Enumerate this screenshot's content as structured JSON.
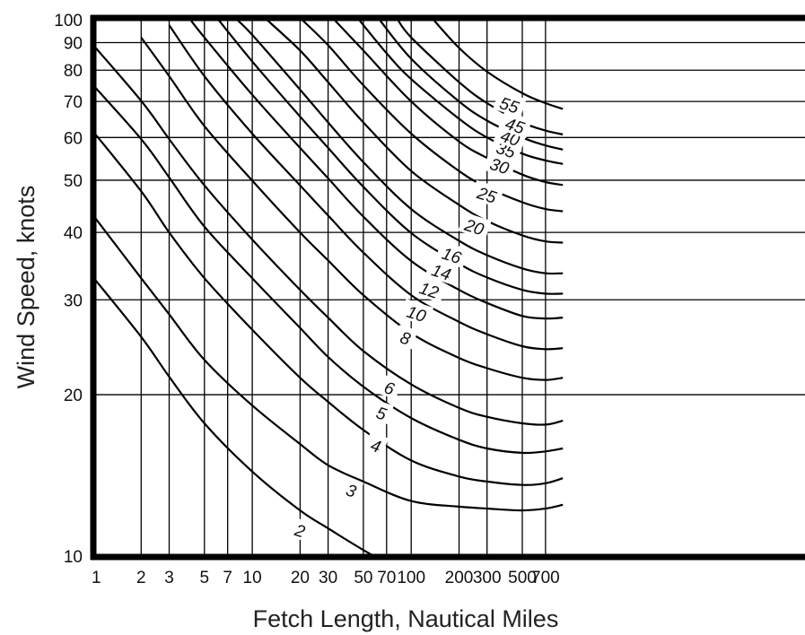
{
  "chart_data": {
    "type": "line",
    "title": "",
    "xlabel": "Fetch Length, Nautical Miles",
    "ylabel": "Wind Speed, knots",
    "xscale": "log",
    "yscale": "log",
    "xlim": [
      1,
      900
    ],
    "ylim": [
      10,
      100
    ],
    "grid": true,
    "legend": "none (contour labels on curves)",
    "x_ticks": [
      {
        "value": 1,
        "label": "1"
      },
      {
        "value": 2,
        "label": "2"
      },
      {
        "value": 3,
        "label": "3"
      },
      {
        "value": 5,
        "label": "5"
      },
      {
        "value": 7,
        "label": "7"
      },
      {
        "value": 10,
        "label": "10"
      },
      {
        "value": 20,
        "label": "20"
      },
      {
        "value": 30,
        "label": "30"
      },
      {
        "value": 50,
        "label": "50"
      },
      {
        "value": 70,
        "label": "70"
      },
      {
        "value": 100,
        "label": "100"
      },
      {
        "value": 200,
        "label": "200"
      },
      {
        "value": 300,
        "label": "300"
      },
      {
        "value": 500,
        "label": "500"
      },
      {
        "value": 700,
        "label": "700"
      }
    ],
    "y_ticks": [
      {
        "value": 10,
        "label": "10"
      },
      {
        "value": 20,
        "label": "20"
      },
      {
        "value": 30,
        "label": "30"
      },
      {
        "value": 40,
        "label": "40"
      },
      {
        "value": 50,
        "label": "50"
      },
      {
        "value": 60,
        "label": "60"
      },
      {
        "value": 70,
        "label": "70"
      },
      {
        "value": 80,
        "label": "80"
      },
      {
        "value": 90,
        "label": "90"
      },
      {
        "value": 100,
        "label": "100"
      }
    ],
    "series": [
      {
        "name": "2",
        "label_at": [
          20,
          11.2
        ],
        "points": [
          [
            1,
            33
          ],
          [
            2,
            25.6
          ],
          [
            3,
            21.6
          ],
          [
            5,
            17.7
          ],
          [
            10,
            14.4
          ],
          [
            20,
            12.2
          ],
          [
            30,
            11.3
          ],
          [
            50,
            10.3
          ],
          [
            60,
            10
          ]
        ]
      },
      {
        "name": "3",
        "label_at": [
          42,
          13.3
        ],
        "points": [
          [
            1,
            43
          ],
          [
            2,
            32.9
          ],
          [
            3,
            28.2
          ],
          [
            5,
            23.2
          ],
          [
            10,
            19.1
          ],
          [
            20,
            16.2
          ],
          [
            30,
            14.8
          ],
          [
            50,
            13.8
          ],
          [
            100,
            12.7
          ],
          [
            200,
            12.4
          ],
          [
            300,
            12.3
          ],
          [
            500,
            12.2
          ],
          [
            700,
            12.3
          ],
          [
            900,
            12.5
          ]
        ]
      },
      {
        "name": "4",
        "label_at": [
          60,
          16.1
        ],
        "points": [
          [
            1,
            61.5
          ],
          [
            2,
            47.7
          ],
          [
            3,
            40
          ],
          [
            5,
            32.9
          ],
          [
            10,
            26.4
          ],
          [
            20,
            21.5
          ],
          [
            30,
            19.4
          ],
          [
            50,
            17.2
          ],
          [
            100,
            15.1
          ],
          [
            200,
            14.1
          ],
          [
            300,
            13.8
          ],
          [
            500,
            13.6
          ],
          [
            700,
            13.7
          ],
          [
            900,
            14
          ]
        ]
      },
      {
        "name": "5",
        "label_at": [
          65,
          18.5
        ],
        "points": [
          [
            1,
            75
          ],
          [
            2,
            59.6
          ],
          [
            3,
            50.6
          ],
          [
            5,
            41
          ],
          [
            10,
            32.9
          ],
          [
            20,
            26.6
          ],
          [
            30,
            23.5
          ],
          [
            50,
            20.7
          ],
          [
            100,
            18.1
          ],
          [
            200,
            16.5
          ],
          [
            300,
            15.9
          ],
          [
            500,
            15.6
          ],
          [
            700,
            15.7
          ],
          [
            900,
            15.9
          ]
        ]
      },
      {
        "name": "6",
        "label_at": [
          73,
          20.6
        ],
        "points": [
          [
            1,
            89
          ],
          [
            2,
            70.2
          ],
          [
            3,
            59.6
          ],
          [
            5,
            48.9
          ],
          [
            10,
            38.8
          ],
          [
            20,
            31.3
          ],
          [
            30,
            27.8
          ],
          [
            50,
            24.1
          ],
          [
            100,
            20.9
          ],
          [
            200,
            18.9
          ],
          [
            300,
            18.2
          ],
          [
            500,
            17.7
          ],
          [
            700,
            17.6
          ],
          [
            900,
            17.9
          ]
        ]
      },
      {
        "name": "8",
        "label_at": [
          92,
          25.5
        ],
        "points": [
          [
            2,
            92
          ],
          [
            3,
            78
          ],
          [
            5,
            63
          ],
          [
            10,
            49.9
          ],
          [
            20,
            40
          ],
          [
            30,
            35.5
          ],
          [
            50,
            30.6
          ],
          [
            100,
            26
          ],
          [
            200,
            23.4
          ],
          [
            300,
            22.4
          ],
          [
            500,
            21.5
          ],
          [
            700,
            21.3
          ],
          [
            900,
            21.5
          ]
        ]
      },
      {
        "name": "10",
        "label_at": [
          108,
          28.3
        ],
        "points": [
          [
            3,
            97
          ],
          [
            5,
            78
          ],
          [
            10,
            61
          ],
          [
            20,
            48.9
          ],
          [
            30,
            43
          ],
          [
            50,
            36.7
          ],
          [
            100,
            30.6
          ],
          [
            200,
            27.3
          ],
          [
            300,
            25.9
          ],
          [
            500,
            24.6
          ],
          [
            700,
            24.3
          ],
          [
            900,
            24.4
          ]
        ]
      },
      {
        "name": "12",
        "label_at": [
          130,
          31.3
        ],
        "points": [
          [
            4,
            100
          ],
          [
            5,
            92
          ],
          [
            10,
            72
          ],
          [
            20,
            57.4
          ],
          [
            30,
            50.4
          ],
          [
            50,
            42.8
          ],
          [
            100,
            35.4
          ],
          [
            200,
            31.3
          ],
          [
            300,
            29.6
          ],
          [
            500,
            28
          ],
          [
            700,
            27.7
          ],
          [
            900,
            27.8
          ]
        ]
      },
      {
        "name": "14",
        "label_at": [
          155,
          33.8
        ],
        "points": [
          [
            6,
            100
          ],
          [
            10,
            83
          ],
          [
            20,
            65.6
          ],
          [
            30,
            57.4
          ],
          [
            50,
            48.6
          ],
          [
            100,
            39.9
          ],
          [
            200,
            35
          ],
          [
            300,
            33
          ],
          [
            500,
            31.3
          ],
          [
            700,
            30.8
          ],
          [
            900,
            30.8
          ]
        ]
      },
      {
        "name": "16",
        "label_at": [
          180,
          36.3
        ],
        "points": [
          [
            7.8,
            100
          ],
          [
            10,
            93
          ],
          [
            20,
            73.6
          ],
          [
            30,
            64
          ],
          [
            50,
            54
          ],
          [
            100,
            44.2
          ],
          [
            200,
            38.6
          ],
          [
            300,
            36.3
          ],
          [
            500,
            34.3
          ],
          [
            700,
            33.6
          ],
          [
            900,
            33.6
          ]
        ]
      },
      {
        "name": "20",
        "label_at": [
          250,
          41
        ],
        "points": [
          [
            12,
            100
          ],
          [
            20,
            87
          ],
          [
            30,
            76
          ],
          [
            50,
            64
          ],
          [
            100,
            52
          ],
          [
            200,
            45
          ],
          [
            300,
            42
          ],
          [
            500,
            39.5
          ],
          [
            700,
            38.5
          ],
          [
            900,
            38.3
          ]
        ]
      },
      {
        "name": "25",
        "label_at": [
          300,
          47
        ],
        "points": [
          [
            20,
            100
          ],
          [
            30,
            89
          ],
          [
            50,
            75
          ],
          [
            100,
            61
          ],
          [
            200,
            52
          ],
          [
            300,
            48.5
          ],
          [
            500,
            45.5
          ],
          [
            700,
            44.2
          ],
          [
            900,
            43.8
          ]
        ]
      },
      {
        "name": "30",
        "label_at": [
          360,
          53.2
        ],
        "points": [
          [
            32,
            100
          ],
          [
            50,
            87
          ],
          [
            100,
            70
          ],
          [
            200,
            59
          ],
          [
            300,
            55
          ],
          [
            500,
            51.2
          ],
          [
            700,
            49.6
          ],
          [
            900,
            49
          ]
        ]
      },
      {
        "name": "35",
        "label_at": [
          395,
          57
        ],
        "points": [
          [
            46,
            100
          ],
          [
            70,
            86
          ],
          [
            100,
            77
          ],
          [
            200,
            65
          ],
          [
            300,
            60
          ],
          [
            500,
            56
          ],
          [
            700,
            54.4
          ],
          [
            900,
            53.6
          ]
        ]
      },
      {
        "name": "40",
        "label_at": [
          420,
          60
        ],
        "points": [
          [
            62,
            100
          ],
          [
            100,
            84
          ],
          [
            200,
            70
          ],
          [
            300,
            64.5
          ],
          [
            500,
            60
          ],
          [
            700,
            58
          ],
          [
            900,
            57
          ]
        ]
      },
      {
        "name": "45",
        "label_at": [
          450,
          63.2
        ],
        "points": [
          [
            81,
            100
          ],
          [
            100,
            92
          ],
          [
            200,
            76
          ],
          [
            300,
            69.5
          ],
          [
            500,
            64
          ],
          [
            700,
            61.8
          ],
          [
            900,
            60.8
          ]
        ]
      },
      {
        "name": "55",
        "label_at": [
          415,
          69
        ],
        "points": [
          [
            135,
            100
          ],
          [
            200,
            88
          ],
          [
            300,
            79.5
          ],
          [
            500,
            72.5
          ],
          [
            700,
            69.5
          ],
          [
            900,
            67.8
          ]
        ]
      }
    ]
  }
}
